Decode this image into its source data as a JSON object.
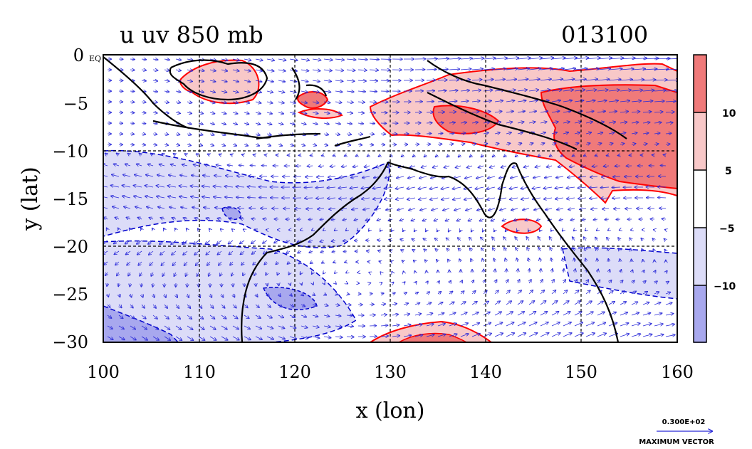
{
  "plot": {
    "field_title": "u uv 850 mb",
    "timestamp": "013100",
    "eq_marker": "EQ",
    "xlabel": "x (lon)",
    "ylabel": "y (lat)"
  },
  "axes": {
    "x_ticks": [
      "100",
      "110",
      "120",
      "130",
      "140",
      "150",
      "160"
    ],
    "y_ticks": [
      "0",
      "−5",
      "−10",
      "−15",
      "−20",
      "−25",
      "−30"
    ],
    "x_range": [
      100,
      160
    ],
    "y_range": [
      -30,
      0
    ],
    "grid": true
  },
  "colorbar": {
    "labels": [
      "10",
      "5",
      "−5",
      "−10"
    ],
    "bins": [
      {
        "range": "> 10",
        "color": "#f07a7a"
      },
      {
        "range": "5 to 10",
        "color": "#f8c8c8"
      },
      {
        "range": "-5 to 5",
        "color": "#ffffff"
      },
      {
        "range": "-10 to -5",
        "color": "#dcdcf8"
      },
      {
        "range": "< -10",
        "color": "#a8a8ee"
      }
    ]
  },
  "vector_key": {
    "value": "0.300E+02",
    "label": "MAXIMUM VECTOR"
  },
  "colors": {
    "positive_contour": "#ff0000",
    "negative_contour": "#0000cc",
    "vectors": "#2a2ad8",
    "coastline": "#000000"
  }
}
